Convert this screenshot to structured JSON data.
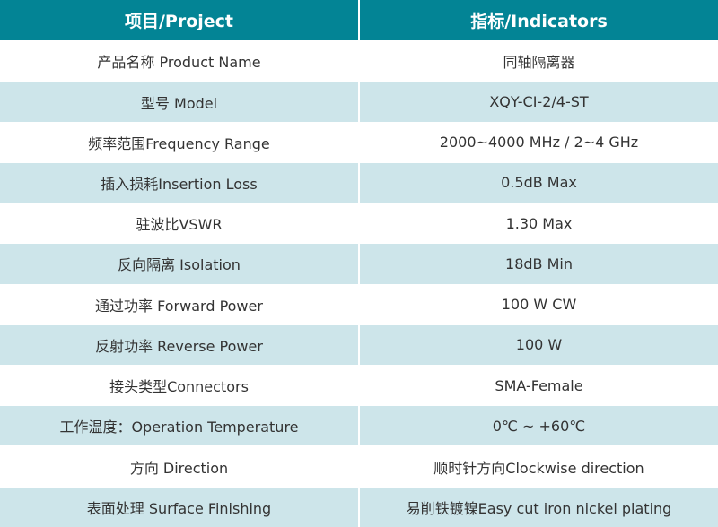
{
  "header": {
    "project": "项目/Project",
    "indicators": "指标/Indicators"
  },
  "rows": [
    {
      "project": "产品名称 Product Name",
      "indicator": "同轴隔离器"
    },
    {
      "project": "型号 Model",
      "indicator": "XQY-CI-2/4-ST"
    },
    {
      "project": "频率范围Frequency Range",
      "indicator": "2000~4000 MHz / 2~4 GHz"
    },
    {
      "project": "插入损耗Insertion Loss",
      "indicator": "0.5dB Max"
    },
    {
      "project": "驻波比VSWR",
      "indicator": "1.30 Max"
    },
    {
      "project": "反向隔离 Isolation",
      "indicator": "18dB Min"
    },
    {
      "project": "通过功率 Forward Power",
      "indicator": "100 W CW"
    },
    {
      "project": "反射功率 Reverse Power",
      "indicator": "100 W"
    },
    {
      "project": "接头类型Connectors",
      "indicator": "SMA-Female"
    },
    {
      "project": "工作温度：Operation Temperature",
      "indicator": "0℃ ~ +60℃"
    },
    {
      "project": "方向 Direction",
      "indicator": "顺时针方向Clockwise direction"
    },
    {
      "project": "表面处理 Surface Finishing",
      "indicator": "易削铁镀镍Easy cut iron nickel plating"
    }
  ],
  "colors": {
    "header": "#038495",
    "alt_row": "#cde5ea",
    "text": "#333333"
  }
}
